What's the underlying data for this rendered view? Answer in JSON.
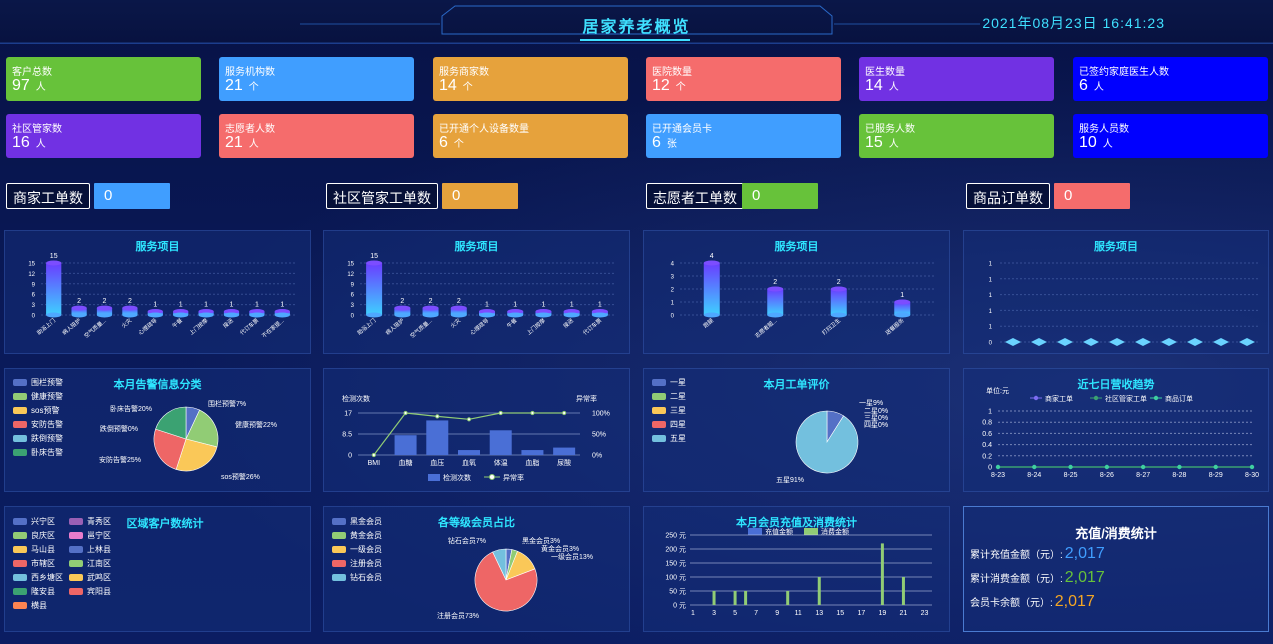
{
  "header": {
    "title": "居家养老概览",
    "datetime": "2021年08月23日 16:41:23"
  },
  "cards": [
    {
      "label": "客户总数",
      "value": "97",
      "unit": "人",
      "color": "#67c23a"
    },
    {
      "label": "服务机构数",
      "value": "21",
      "unit": "个",
      "color": "#409eff"
    },
    {
      "label": "服务商家数",
      "value": "14",
      "unit": "个",
      "color": "#e6a23c"
    },
    {
      "label": "医院数量",
      "value": "12",
      "unit": "个",
      "color": "#f56c6c"
    },
    {
      "label": "医生数量",
      "value": "14",
      "unit": "人",
      "color": "#7131e3"
    },
    {
      "label": "已签约家庭医生人数",
      "value": "6",
      "unit": "人",
      "color": "#0000ff"
    },
    {
      "label": "社区管家数",
      "value": "16",
      "unit": "人",
      "color": "#7131e3"
    },
    {
      "label": "志愿者人数",
      "value": "21",
      "unit": "人",
      "color": "#f56c6c"
    },
    {
      "label": "已开通个人设备数量",
      "value": "6",
      "unit": "个",
      "color": "#e6a23c"
    },
    {
      "label": "已开通会员卡",
      "value": "6",
      "unit": "张",
      "color": "#409eff"
    },
    {
      "label": "已服务人数",
      "value": "15",
      "unit": "人",
      "color": "#67c23a"
    },
    {
      "label": "服务人员数",
      "value": "10",
      "unit": "人",
      "color": "#0000ff"
    }
  ],
  "workorders": [
    {
      "label": "商家工单数",
      "value": "0",
      "color": "#409eff"
    },
    {
      "label": "社区管家工单数",
      "value": "0",
      "color": "#e6a23c"
    },
    {
      "label": "志愿者工单数",
      "value": "0",
      "color": "#67c23a"
    },
    {
      "label": "商品订单数",
      "value": "0",
      "color": "#f56c6c"
    }
  ],
  "chart_data": [
    {
      "type": "bar",
      "title": "服务项目",
      "categories": [
        "助浴上门",
        "病人陪护",
        "空气质量...",
        "火灾",
        "心理疏导",
        "午餐",
        "上门按摩",
        "接送",
        "代订车票",
        "不在家提..."
      ],
      "values": [
        15,
        2,
        2,
        2,
        1,
        1,
        1,
        1,
        1,
        1
      ],
      "yticks": [
        0,
        3,
        6,
        9,
        12,
        15
      ]
    },
    {
      "type": "bar",
      "title": "服务项目",
      "categories": [
        "助浴上门",
        "病人陪护",
        "空气质量...",
        "火灾",
        "心理疏导",
        "午餐",
        "上门按摩",
        "接送",
        "代订车票"
      ],
      "values": [
        15,
        2,
        2,
        2,
        1,
        1,
        1,
        1,
        1
      ],
      "yticks": [
        0,
        3,
        6,
        9,
        12,
        15
      ]
    },
    {
      "type": "bar",
      "title": "服务项目",
      "categories": [
        "跑腿",
        "志愿者服...",
        "打扫卫生",
        "送餐服务"
      ],
      "values": [
        4,
        2,
        2,
        1
      ],
      "yticks": [
        0,
        1,
        2,
        3,
        4
      ]
    },
    {
      "type": "bar",
      "title": "服务项目",
      "categories": [
        "",
        "",
        "",
        "",
        "",
        "",
        "",
        "",
        "",
        ""
      ],
      "values": [
        0,
        0,
        0,
        0,
        0,
        0,
        0,
        0,
        0,
        0
      ],
      "yticks": [
        0,
        1
      ]
    },
    {
      "type": "pie",
      "title": "本月告警信息分类",
      "legend": [
        "围栏预警",
        "健康预警",
        "sos预警",
        "安防告警",
        "跌倒预警",
        "卧床告警"
      ],
      "labels": [
        "围栏预警7%",
        "健康预警22%",
        "sos预警26%",
        "安防告警25%",
        "跌倒预警0%",
        "卧床告警20%"
      ],
      "values": [
        7,
        22,
        26,
        25,
        0,
        20
      ],
      "colors": [
        "#5470c6",
        "#91cc75",
        "#fac858",
        "#ee6666",
        "#73c0de",
        "#3ba272"
      ]
    },
    {
      "type": "bar+line",
      "legend": [
        "检测次数",
        "异常率"
      ],
      "categories": [
        "BMI",
        "血糖",
        "血压",
        "血氧",
        "体温",
        "血脂",
        "尿酸"
      ],
      "bars": [
        0,
        8,
        14,
        2,
        10,
        2,
        3
      ],
      "rate": [
        0,
        100,
        92,
        85,
        100,
        100,
        100
      ],
      "ylabel_left": "检测次数",
      "ylabel_right": "异常率",
      "yticks_left": [
        0,
        8.5,
        17
      ],
      "yticks_right": [
        "0%",
        "50%",
        "100%"
      ]
    },
    {
      "type": "pie",
      "title": "本月工单评价",
      "legend": [
        "一星",
        "二星",
        "三星",
        "四星",
        "五星"
      ],
      "labels": [
        "一星9%",
        "二星0%",
        "三星0%",
        "四星0%",
        "五星91%"
      ],
      "values": [
        9,
        0,
        0,
        0,
        91
      ],
      "colors": [
        "#5470c6",
        "#91cc75",
        "#fac858",
        "#ee6666",
        "#73c0de"
      ]
    },
    {
      "type": "line",
      "title": "近七日营收趋势",
      "unit": "单位:元",
      "legend": [
        "商家工单",
        "社区管家工单",
        "商品订单"
      ],
      "x": [
        "8-23",
        "8-24",
        "8-25",
        "8-26",
        "8-27",
        "8-28",
        "8-29",
        "8-30"
      ],
      "series": [
        {
          "name": "商家工单",
          "values": [
            0,
            0,
            0,
            0,
            0,
            0,
            0,
            0
          ]
        },
        {
          "name": "社区管家工单",
          "values": [
            0,
            0,
            0,
            0,
            0,
            0,
            0,
            0
          ]
        },
        {
          "name": "商品订单",
          "values": [
            0,
            0,
            0,
            0,
            0,
            0,
            0,
            0
          ]
        }
      ],
      "yticks": [
        "0",
        "0.2",
        "0.4",
        "0.6",
        "0.8",
        "1"
      ]
    },
    {
      "type": "legend-list",
      "title": "区域客户数统计",
      "items": [
        "兴宁区",
        "青秀区",
        "良庆区",
        "邕宁区",
        "马山县",
        "上林县",
        "市辖区",
        "江南区",
        "西乡塘区",
        "武鸣区",
        "隆安县",
        "宾阳县",
        "横县"
      ],
      "colors": [
        "#5470c6",
        "#9a60b4",
        "#91cc75",
        "#ea7ccc",
        "#fac858",
        "#5470c6",
        "#ee6666",
        "#91cc75",
        "#73c0de",
        "#fac858",
        "#3ba272",
        "#ee6666",
        "#fc8452"
      ]
    },
    {
      "type": "pie",
      "title": "各等级会员占比",
      "legend": [
        "黑金会员",
        "黄金会员",
        "一级会员",
        "注册会员",
        "钻石会员"
      ],
      "labels": [
        "黑金会员3%",
        "黄金会员3%",
        "一级会员13%",
        "注册会员73%",
        "钻石会员7%"
      ],
      "values": [
        3,
        3,
        13,
        73,
        7
      ],
      "colors": [
        "#5470c6",
        "#91cc75",
        "#fac858",
        "#ee6666",
        "#73c0de"
      ]
    },
    {
      "type": "bar",
      "title": "本月会员充值及消费统计",
      "legend": [
        "充值金额",
        "消费金额"
      ],
      "x": [
        "1",
        "3",
        "5",
        "7",
        "9",
        "11",
        "13",
        "15",
        "17",
        "19",
        "21",
        "23"
      ],
      "recharge": [],
      "consume": [
        {
          "day": 3,
          "v": 50
        },
        {
          "day": 5,
          "v": 50
        },
        {
          "day": 6,
          "v": 50
        },
        {
          "day": 10,
          "v": 50
        },
        {
          "day": 13,
          "v": 100
        },
        {
          "day": 19,
          "v": 220
        },
        {
          "day": 21,
          "v": 100
        }
      ],
      "yticks": [
        "0 元",
        "50 元",
        "100 元",
        "150 元",
        "200 元",
        "250 元"
      ]
    }
  ],
  "stats": {
    "title": "充值/消费统计",
    "rows": [
      {
        "label": "累计充值金额（元）:",
        "value": "2,017",
        "color": "#409eff"
      },
      {
        "label": "累计消费金额（元）:",
        "value": "2,017",
        "color": "#67c23a"
      },
      {
        "label": "会员卡余额（元）:",
        "value": "2,017",
        "color": "#f5a623"
      }
    ]
  }
}
